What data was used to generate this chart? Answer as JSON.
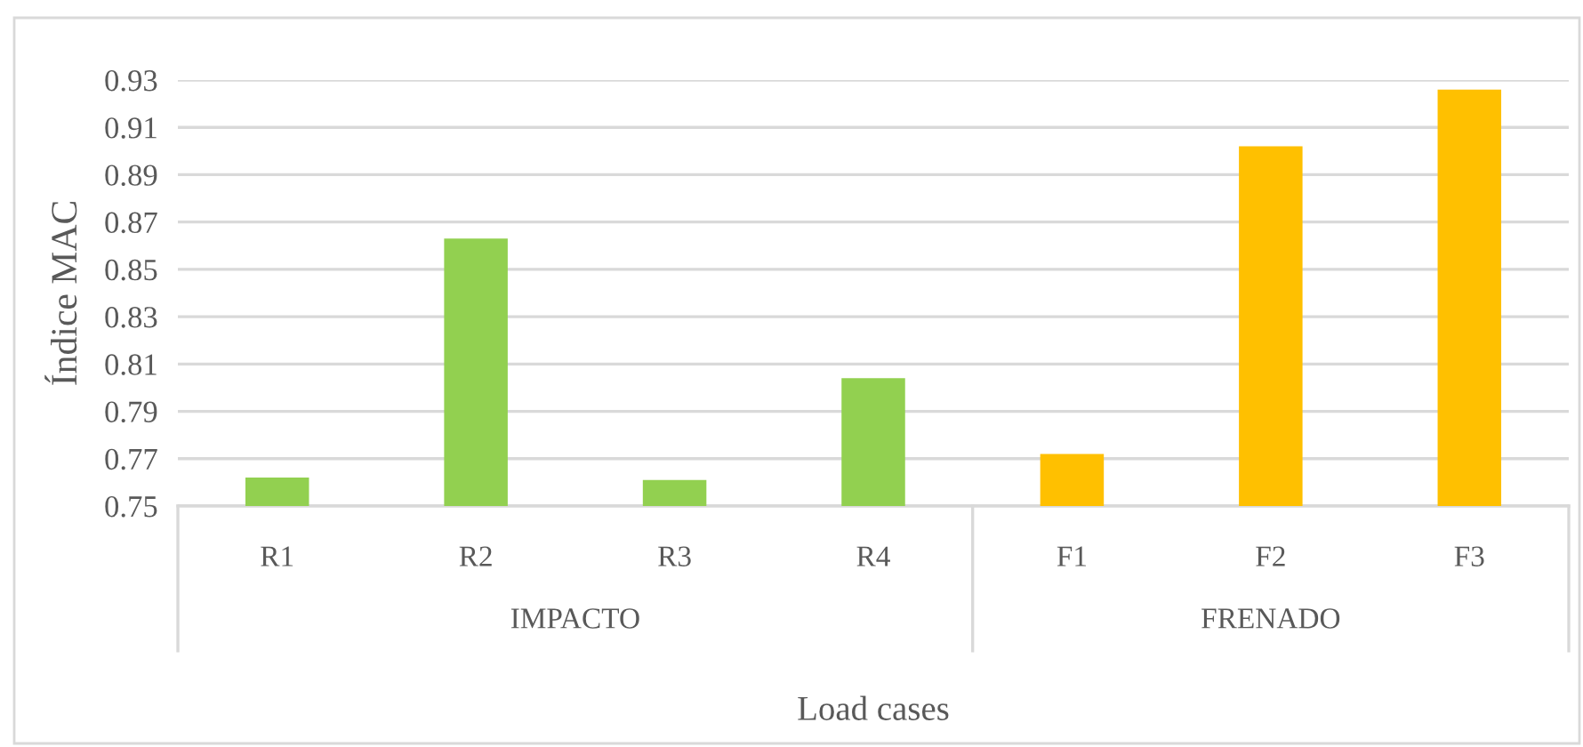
{
  "chart_data": {
    "type": "bar",
    "ylabel": "Índice MAC",
    "xlabel": "Load cases",
    "categories": [
      "R1",
      "R2",
      "R3",
      "R4",
      "F1",
      "F2",
      "F3"
    ],
    "series": [
      {
        "name": "IMPACTO",
        "color": "#92d050",
        "values": [
          0.762,
          0.863,
          0.761,
          0.804,
          null,
          null,
          null
        ]
      },
      {
        "name": "FRENADO",
        "color": "#ffc000",
        "values": [
          null,
          null,
          null,
          null,
          0.772,
          0.902,
          0.926
        ]
      }
    ],
    "ylim": [
      0.75,
      0.93
    ],
    "yticks": [
      0.75,
      0.77,
      0.79,
      0.81,
      0.83,
      0.85,
      0.87,
      0.89,
      0.91,
      0.93
    ],
    "grid": "y",
    "legend": false
  }
}
